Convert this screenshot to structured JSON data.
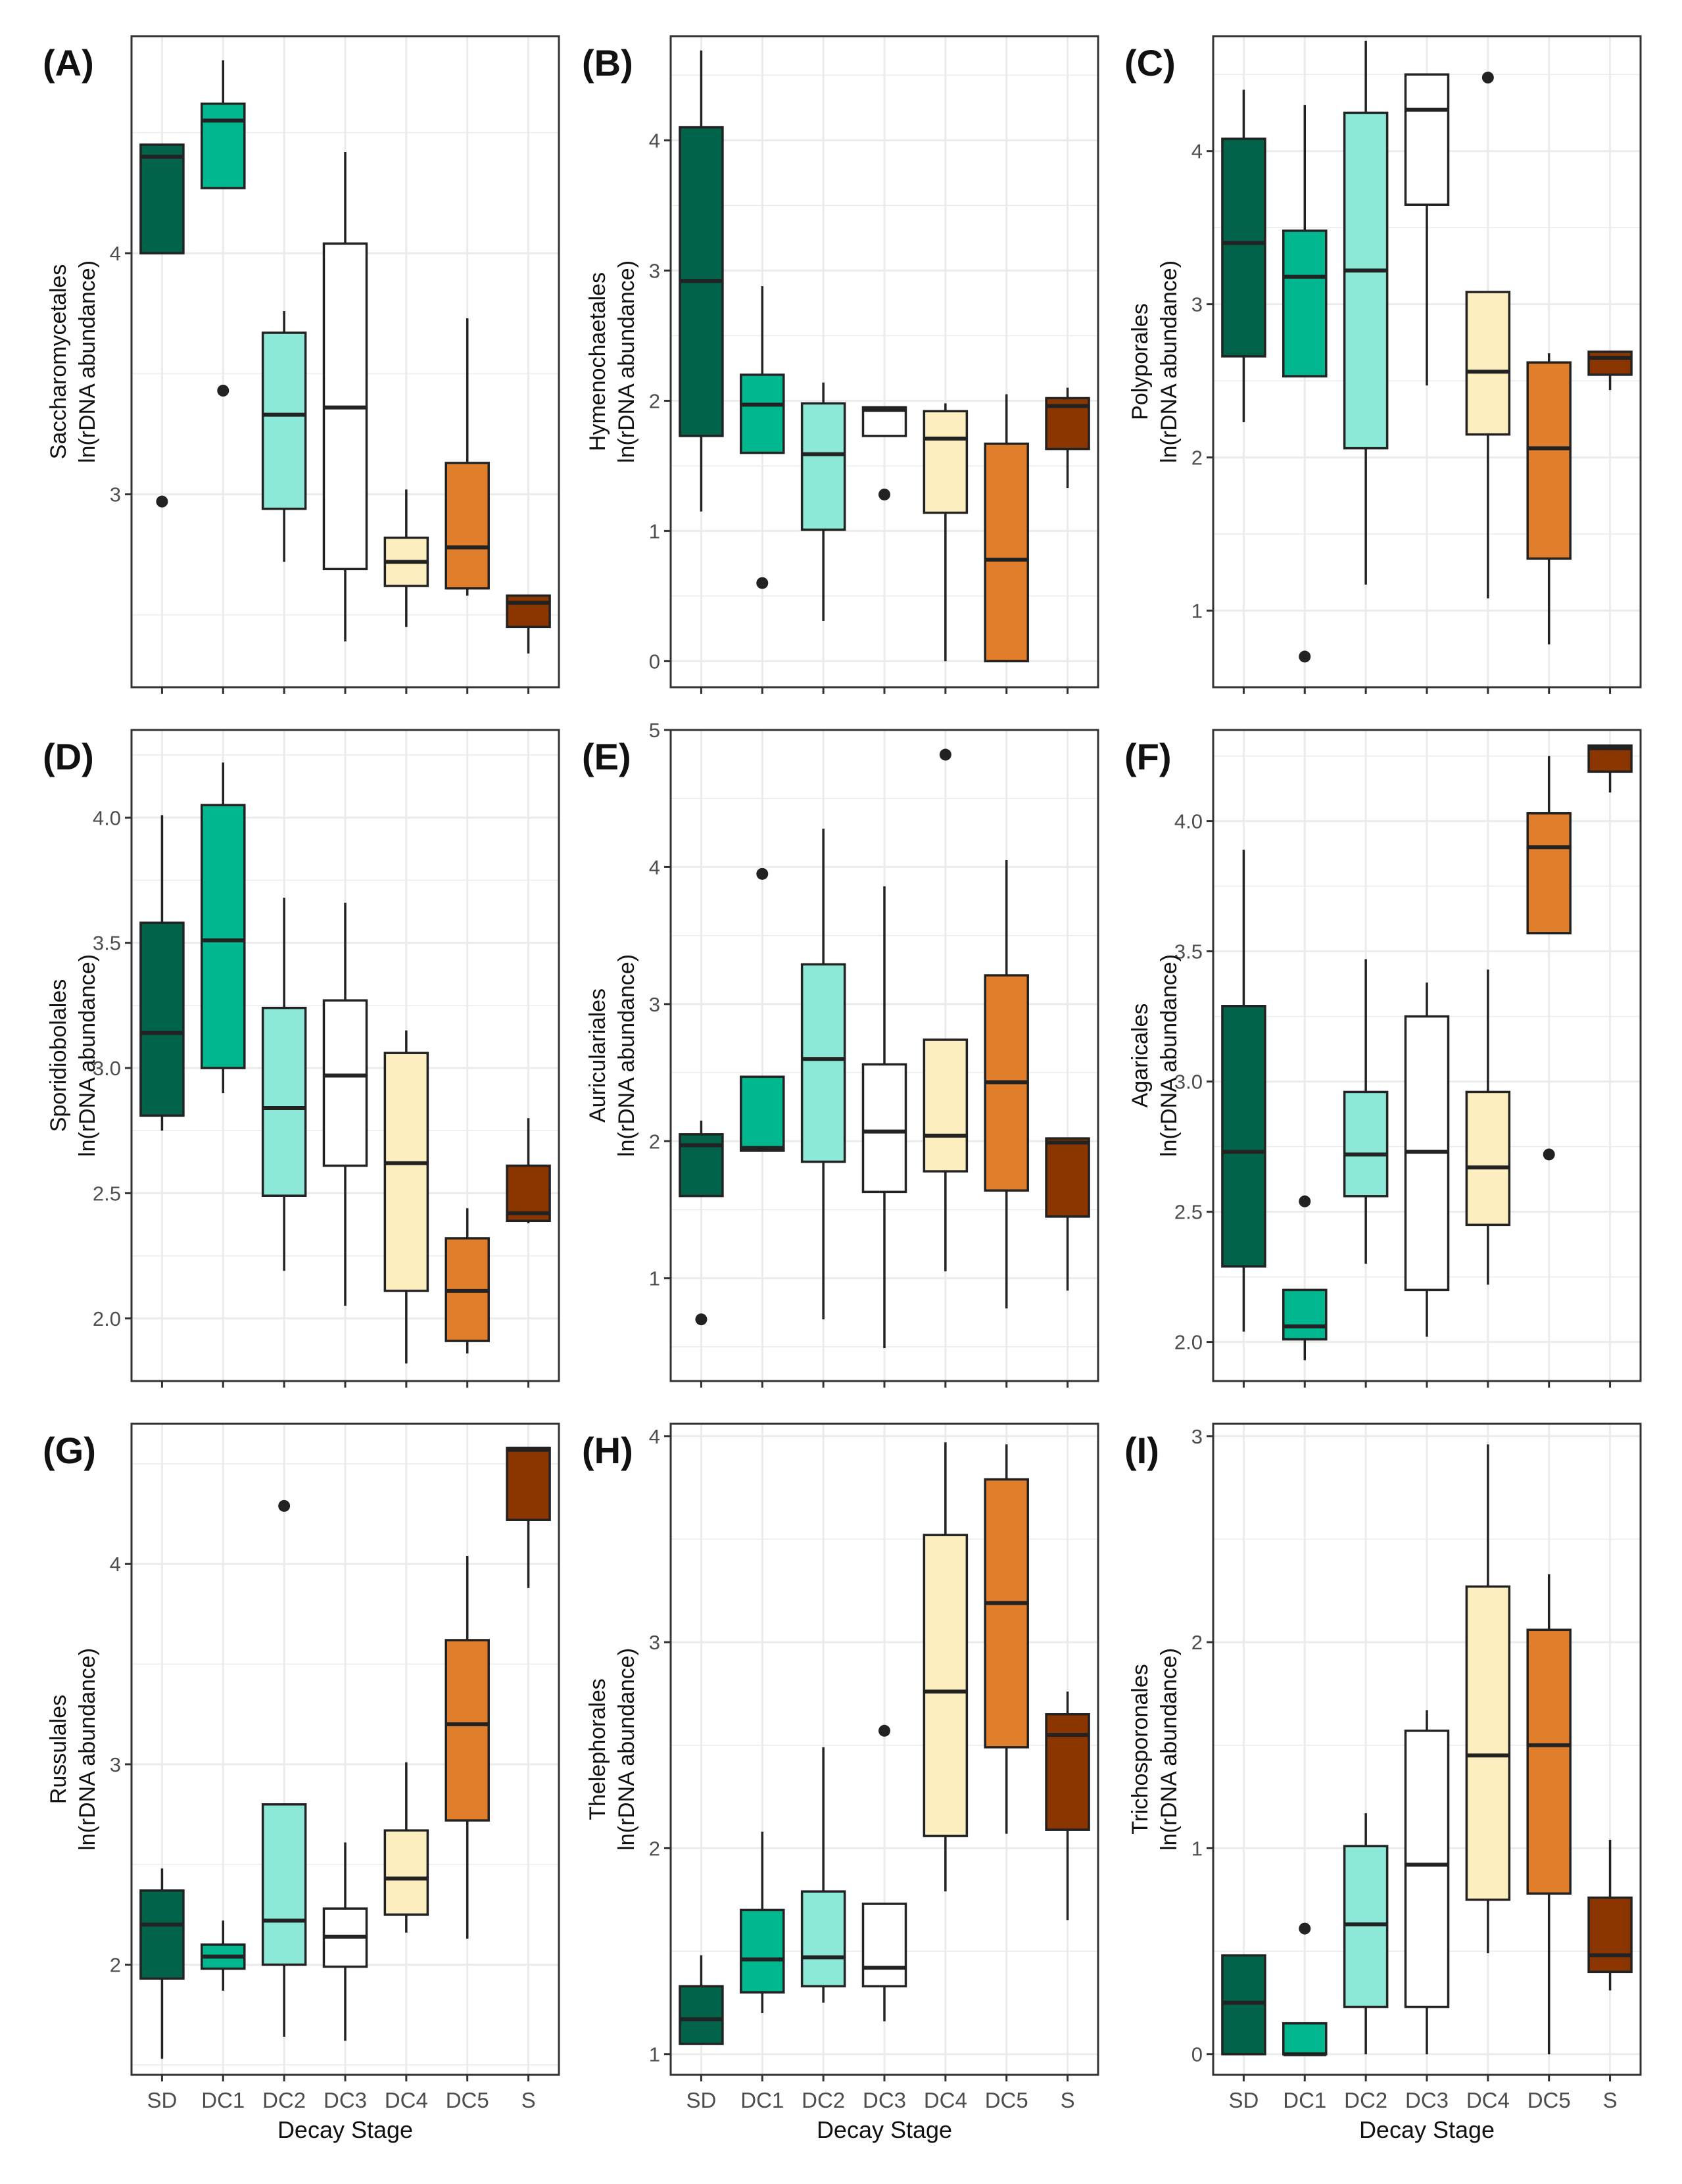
{
  "figure": {
    "x_title": "Decay Stage",
    "y_title_line2": "ln(rDNA abundance)"
  },
  "colors": {
    "SD": "#01634a",
    "DC1": "#00b78f",
    "DC2": "#8de9d7",
    "DC3": "#ffffff",
    "DC4": "#fdeec0",
    "DC5": "#e07e2b",
    "S": "#8b3600",
    "stroke": "#222222",
    "grid": "#ebebeb",
    "panel_border": "#333333"
  },
  "chart_data": [
    {
      "panel": "(A)",
      "type": "boxplot",
      "ylabel": "Saccharomycetales",
      "categories": [
        "SD",
        "DC1",
        "DC2",
        "DC3",
        "DC4",
        "DC5",
        "S"
      ],
      "ylim": [
        2.2,
        4.9
      ],
      "yticks": [
        3,
        4
      ],
      "boxes": [
        {
          "cat": "SD",
          "whislo": 4.0,
          "q1": 4.0,
          "med": 4.4,
          "q3": 4.45,
          "whishi": 4.45,
          "outliers": [
            2.97
          ]
        },
        {
          "cat": "DC1",
          "whislo": 4.27,
          "q1": 4.27,
          "med": 4.55,
          "q3": 4.62,
          "whishi": 4.8,
          "outliers": [
            3.43
          ]
        },
        {
          "cat": "DC2",
          "whislo": 2.72,
          "q1": 2.94,
          "med": 3.33,
          "q3": 3.67,
          "whishi": 3.76,
          "outliers": []
        },
        {
          "cat": "DC3",
          "whislo": 2.39,
          "q1": 2.69,
          "med": 3.36,
          "q3": 4.04,
          "whishi": 4.42,
          "outliers": []
        },
        {
          "cat": "DC4",
          "whislo": 2.45,
          "q1": 2.62,
          "med": 2.72,
          "q3": 2.82,
          "whishi": 3.02,
          "outliers": []
        },
        {
          "cat": "DC5",
          "whislo": 2.58,
          "q1": 2.61,
          "med": 2.78,
          "q3": 3.13,
          "whishi": 3.73,
          "outliers": []
        },
        {
          "cat": "S",
          "whislo": 2.34,
          "q1": 2.45,
          "med": 2.55,
          "q3": 2.58,
          "whishi": 2.58,
          "outliers": []
        }
      ]
    },
    {
      "panel": "(B)",
      "type": "boxplot",
      "ylabel": "Hymenochaetales",
      "categories": [
        "SD",
        "DC1",
        "DC2",
        "DC3",
        "DC4",
        "DC5",
        "S"
      ],
      "ylim": [
        -0.2,
        4.8
      ],
      "yticks": [
        0,
        1,
        2,
        3,
        4
      ],
      "boxes": [
        {
          "cat": "SD",
          "whislo": 1.15,
          "q1": 1.73,
          "med": 2.92,
          "q3": 4.1,
          "whishi": 4.69,
          "outliers": []
        },
        {
          "cat": "DC1",
          "whislo": 1.6,
          "q1": 1.6,
          "med": 1.97,
          "q3": 2.2,
          "whishi": 2.88,
          "outliers": [
            0.6
          ]
        },
        {
          "cat": "DC2",
          "whislo": 0.31,
          "q1": 1.01,
          "med": 1.59,
          "q3": 1.98,
          "whishi": 2.14,
          "outliers": []
        },
        {
          "cat": "DC3",
          "whislo": 1.73,
          "q1": 1.73,
          "med": 1.93,
          "q3": 1.95,
          "whishi": 1.95,
          "outliers": [
            1.28
          ]
        },
        {
          "cat": "DC4",
          "whislo": 0.0,
          "q1": 1.14,
          "med": 1.71,
          "q3": 1.92,
          "whishi": 1.98,
          "outliers": []
        },
        {
          "cat": "DC5",
          "whislo": 0.0,
          "q1": 0.0,
          "med": 0.78,
          "q3": 1.67,
          "whishi": 2.05,
          "outliers": []
        },
        {
          "cat": "S",
          "whislo": 1.33,
          "q1": 1.63,
          "med": 1.96,
          "q3": 2.02,
          "whishi": 2.1,
          "outliers": []
        }
      ]
    },
    {
      "panel": "(C)",
      "type": "boxplot",
      "ylabel": "Polyporales",
      "categories": [
        "SD",
        "DC1",
        "DC2",
        "DC3",
        "DC4",
        "DC5",
        "S"
      ],
      "ylim": [
        0.5,
        4.75
      ],
      "yticks": [
        1,
        2,
        3,
        4
      ],
      "boxes": [
        {
          "cat": "SD",
          "whislo": 2.23,
          "q1": 2.66,
          "med": 3.4,
          "q3": 4.08,
          "whishi": 4.4,
          "outliers": []
        },
        {
          "cat": "DC1",
          "whislo": 2.53,
          "q1": 2.53,
          "med": 3.18,
          "q3": 3.48,
          "whishi": 4.3,
          "outliers": [
            0.7
          ]
        },
        {
          "cat": "DC2",
          "whislo": 1.17,
          "q1": 2.06,
          "med": 3.22,
          "q3": 4.25,
          "whishi": 4.72,
          "outliers": []
        },
        {
          "cat": "DC3",
          "whislo": 2.47,
          "q1": 3.65,
          "med": 4.27,
          "q3": 4.5,
          "whishi": 4.5,
          "outliers": []
        },
        {
          "cat": "DC4",
          "whislo": 1.08,
          "q1": 2.15,
          "med": 2.56,
          "q3": 3.08,
          "whishi": 3.08,
          "outliers": [
            4.48
          ]
        },
        {
          "cat": "DC5",
          "whislo": 0.78,
          "q1": 1.34,
          "med": 2.06,
          "q3": 2.62,
          "whishi": 2.68,
          "outliers": []
        },
        {
          "cat": "S",
          "whislo": 2.44,
          "q1": 2.54,
          "med": 2.65,
          "q3": 2.69,
          "whishi": 2.69,
          "outliers": []
        }
      ]
    },
    {
      "panel": "(D)",
      "type": "boxplot",
      "ylabel": "Sporidiobolales",
      "categories": [
        "SD",
        "DC1",
        "DC2",
        "DC3",
        "DC4",
        "DC5",
        "S"
      ],
      "ylim": [
        1.75,
        4.35
      ],
      "yticks": [
        2.0,
        2.5,
        3.0,
        3.5,
        4.0
      ],
      "boxes": [
        {
          "cat": "SD",
          "whislo": 2.75,
          "q1": 2.81,
          "med": 3.14,
          "q3": 3.58,
          "whishi": 4.01,
          "outliers": []
        },
        {
          "cat": "DC1",
          "whislo": 2.9,
          "q1": 3.0,
          "med": 3.51,
          "q3": 4.05,
          "whishi": 4.22,
          "outliers": []
        },
        {
          "cat": "DC2",
          "whislo": 2.19,
          "q1": 2.49,
          "med": 2.84,
          "q3": 3.24,
          "whishi": 3.68,
          "outliers": []
        },
        {
          "cat": "DC3",
          "whislo": 2.05,
          "q1": 2.61,
          "med": 2.97,
          "q3": 3.27,
          "whishi": 3.66,
          "outliers": []
        },
        {
          "cat": "DC4",
          "whislo": 1.82,
          "q1": 2.11,
          "med": 2.62,
          "q3": 3.06,
          "whishi": 3.15,
          "outliers": []
        },
        {
          "cat": "DC5",
          "whislo": 1.86,
          "q1": 1.91,
          "med": 2.11,
          "q3": 2.32,
          "whishi": 2.44,
          "outliers": []
        },
        {
          "cat": "S",
          "whislo": 2.38,
          "q1": 2.39,
          "med": 2.42,
          "q3": 2.61,
          "whishi": 2.8,
          "outliers": []
        }
      ]
    },
    {
      "panel": "(E)",
      "type": "boxplot",
      "ylabel": "Auriculariales",
      "categories": [
        "SD",
        "DC1",
        "DC2",
        "DC3",
        "DC4",
        "DC5",
        "S"
      ],
      "ylim": [
        0.25,
        5.0
      ],
      "yticks": [
        1,
        2,
        3,
        4,
        5
      ],
      "boxes": [
        {
          "cat": "SD",
          "whislo": 1.6,
          "q1": 1.6,
          "med": 1.97,
          "q3": 2.05,
          "whishi": 2.15,
          "outliers": [
            0.7
          ]
        },
        {
          "cat": "DC1",
          "whislo": 1.93,
          "q1": 1.93,
          "med": 1.95,
          "q3": 2.47,
          "whishi": 2.47,
          "outliers": [
            3.95
          ]
        },
        {
          "cat": "DC2",
          "whislo": 0.7,
          "q1": 1.85,
          "med": 2.6,
          "q3": 3.29,
          "whishi": 4.28,
          "outliers": []
        },
        {
          "cat": "DC3",
          "whislo": 0.49,
          "q1": 1.63,
          "med": 2.07,
          "q3": 2.56,
          "whishi": 3.86,
          "outliers": []
        },
        {
          "cat": "DC4",
          "whislo": 1.05,
          "q1": 1.78,
          "med": 2.04,
          "q3": 2.74,
          "whishi": 2.74,
          "outliers": [
            4.82
          ]
        },
        {
          "cat": "DC5",
          "whislo": 0.78,
          "q1": 1.64,
          "med": 2.43,
          "q3": 3.21,
          "whishi": 4.05,
          "outliers": []
        },
        {
          "cat": "S",
          "whislo": 0.91,
          "q1": 1.45,
          "med": 1.99,
          "q3": 2.02,
          "whishi": 2.02,
          "outliers": []
        }
      ]
    },
    {
      "panel": "(F)",
      "type": "boxplot",
      "ylabel": "Agaricales",
      "categories": [
        "SD",
        "DC1",
        "DC2",
        "DC3",
        "DC4",
        "DC5",
        "S"
      ],
      "ylim": [
        1.85,
        4.35
      ],
      "yticks": [
        2.0,
        2.5,
        3.0,
        3.5,
        4.0
      ],
      "boxes": [
        {
          "cat": "SD",
          "whislo": 2.04,
          "q1": 2.29,
          "med": 2.73,
          "q3": 3.29,
          "whishi": 3.89,
          "outliers": []
        },
        {
          "cat": "DC1",
          "whislo": 1.93,
          "q1": 2.01,
          "med": 2.06,
          "q3": 2.2,
          "whishi": 2.2,
          "outliers": [
            2.54
          ]
        },
        {
          "cat": "DC2",
          "whislo": 2.3,
          "q1": 2.56,
          "med": 2.72,
          "q3": 2.96,
          "whishi": 3.47,
          "outliers": []
        },
        {
          "cat": "DC3",
          "whislo": 2.02,
          "q1": 2.2,
          "med": 2.73,
          "q3": 3.25,
          "whishi": 3.38,
          "outliers": []
        },
        {
          "cat": "DC4",
          "whislo": 2.22,
          "q1": 2.45,
          "med": 2.67,
          "q3": 2.96,
          "whishi": 3.43,
          "outliers": []
        },
        {
          "cat": "DC5",
          "whislo": 3.57,
          "q1": 3.57,
          "med": 3.9,
          "q3": 4.03,
          "whishi": 4.25,
          "outliers": [
            2.72
          ]
        },
        {
          "cat": "S",
          "whislo": 4.11,
          "q1": 4.19,
          "med": 4.28,
          "q3": 4.29,
          "whishi": 4.29,
          "outliers": []
        }
      ]
    },
    {
      "panel": "(G)",
      "type": "boxplot",
      "ylabel": "Russulales",
      "categories": [
        "SD",
        "DC1",
        "DC2",
        "DC3",
        "DC4",
        "DC5",
        "S"
      ],
      "ylim": [
        1.45,
        4.7
      ],
      "yticks": [
        2,
        3,
        4
      ],
      "boxes": [
        {
          "cat": "SD",
          "whislo": 1.53,
          "q1": 1.93,
          "med": 2.2,
          "q3": 2.37,
          "whishi": 2.48,
          "outliers": []
        },
        {
          "cat": "DC1",
          "whislo": 1.87,
          "q1": 1.98,
          "med": 2.04,
          "q3": 2.1,
          "whishi": 2.22,
          "outliers": []
        },
        {
          "cat": "DC2",
          "whislo": 1.64,
          "q1": 2.0,
          "med": 2.22,
          "q3": 2.8,
          "whishi": 2.8,
          "outliers": [
            4.29
          ]
        },
        {
          "cat": "DC3",
          "whislo": 1.62,
          "q1": 1.99,
          "med": 2.14,
          "q3": 2.28,
          "whishi": 2.61,
          "outliers": []
        },
        {
          "cat": "DC4",
          "whislo": 2.16,
          "q1": 2.25,
          "med": 2.43,
          "q3": 2.67,
          "whishi": 3.01,
          "outliers": []
        },
        {
          "cat": "DC5",
          "whislo": 2.13,
          "q1": 2.72,
          "med": 3.2,
          "q3": 3.62,
          "whishi": 4.04,
          "outliers": []
        },
        {
          "cat": "S",
          "whislo": 3.88,
          "q1": 4.22,
          "med": 4.57,
          "q3": 4.58,
          "whishi": 4.58,
          "outliers": []
        }
      ]
    },
    {
      "panel": "(H)",
      "type": "boxplot",
      "ylabel": "Thelephorales",
      "categories": [
        "SD",
        "DC1",
        "DC2",
        "DC3",
        "DC4",
        "DC5",
        "S"
      ],
      "ylim": [
        0.9,
        4.06
      ],
      "yticks": [
        1,
        2,
        3,
        4
      ],
      "boxes": [
        {
          "cat": "SD",
          "whislo": 1.05,
          "q1": 1.05,
          "med": 1.17,
          "q3": 1.33,
          "whishi": 1.48,
          "outliers": []
        },
        {
          "cat": "DC1",
          "whislo": 1.2,
          "q1": 1.3,
          "med": 1.46,
          "q3": 1.7,
          "whishi": 2.08,
          "outliers": []
        },
        {
          "cat": "DC2",
          "whislo": 1.25,
          "q1": 1.33,
          "med": 1.47,
          "q3": 1.79,
          "whishi": 2.49,
          "outliers": []
        },
        {
          "cat": "DC3",
          "whislo": 1.16,
          "q1": 1.33,
          "med": 1.42,
          "q3": 1.73,
          "whishi": 1.73,
          "outliers": [
            2.57
          ]
        },
        {
          "cat": "DC4",
          "whislo": 1.79,
          "q1": 2.06,
          "med": 2.76,
          "q3": 3.52,
          "whishi": 3.97,
          "outliers": []
        },
        {
          "cat": "DC5",
          "whislo": 2.07,
          "q1": 2.49,
          "med": 3.19,
          "q3": 3.79,
          "whishi": 3.96,
          "outliers": []
        },
        {
          "cat": "S",
          "whislo": 1.65,
          "q1": 2.09,
          "med": 2.55,
          "q3": 2.65,
          "whishi": 2.76,
          "outliers": []
        }
      ]
    },
    {
      "panel": "(I)",
      "type": "boxplot",
      "ylabel": "Trichosporonales",
      "categories": [
        "SD",
        "DC1",
        "DC2",
        "DC3",
        "DC4",
        "DC5",
        "S"
      ],
      "ylim": [
        -0.1,
        3.06
      ],
      "yticks": [
        0,
        1,
        2,
        3
      ],
      "boxes": [
        {
          "cat": "SD",
          "whislo": 0.0,
          "q1": 0.0,
          "med": 0.25,
          "q3": 0.48,
          "whishi": 0.48,
          "outliers": []
        },
        {
          "cat": "DC1",
          "whislo": 0.0,
          "q1": 0.0,
          "med": 0.0,
          "q3": 0.15,
          "whishi": 0.15,
          "outliers": [
            0.61
          ]
        },
        {
          "cat": "DC2",
          "whislo": 0.0,
          "q1": 0.23,
          "med": 0.63,
          "q3": 1.01,
          "whishi": 1.17,
          "outliers": []
        },
        {
          "cat": "DC3",
          "whislo": 0.0,
          "q1": 0.23,
          "med": 0.92,
          "q3": 1.57,
          "whishi": 1.67,
          "outliers": []
        },
        {
          "cat": "DC4",
          "whislo": 0.49,
          "q1": 0.75,
          "med": 1.45,
          "q3": 2.27,
          "whishi": 2.96,
          "outliers": []
        },
        {
          "cat": "DC5",
          "whislo": 0.0,
          "q1": 0.78,
          "med": 1.5,
          "q3": 2.06,
          "whishi": 2.33,
          "outliers": []
        },
        {
          "cat": "S",
          "whislo": 0.31,
          "q1": 0.4,
          "med": 0.48,
          "q3": 0.76,
          "whishi": 1.04,
          "outliers": []
        }
      ]
    }
  ]
}
